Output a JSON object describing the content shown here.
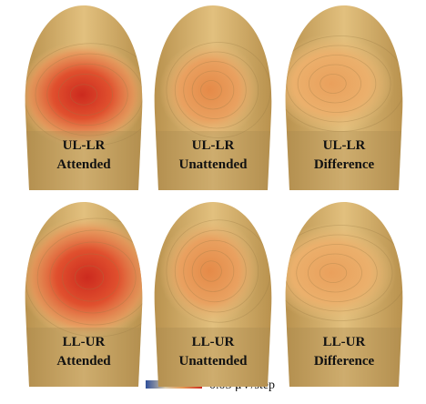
{
  "panels": [
    {
      "label": [
        "UL-LR",
        "Attended"
      ]
    },
    {
      "label": [
        "UL-LR",
        "Unattended"
      ]
    },
    {
      "label": [
        "UL-LR",
        "Difference"
      ]
    },
    {
      "label": [
        "LL-UR",
        "Attended"
      ]
    },
    {
      "label": [
        "LL-UR",
        "Unattended"
      ]
    },
    {
      "label": [
        "LL-UR",
        "Difference"
      ]
    }
  ],
  "legend": {
    "label": "0.05 μV/step"
  }
}
